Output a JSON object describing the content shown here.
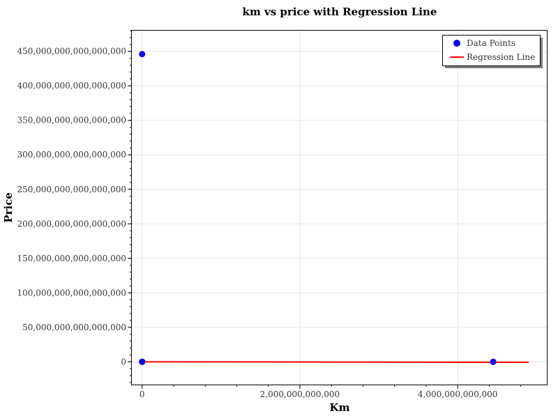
{
  "chart_data": {
    "type": "scatter",
    "title": "km vs price with Regression Line",
    "xlabel": "Km",
    "ylabel": "Price",
    "xlim": [
      -130000000000,
      5130000000000
    ],
    "ylim": [
      -33000000000000000,
      480000000000000000
    ],
    "x_ticks": [
      0,
      2000000000000,
      4000000000000
    ],
    "x_tick_labels": [
      "0",
      "2,000,000,000,000",
      "4,000,000,000,000"
    ],
    "y_ticks": [
      0,
      50000000000000000,
      100000000000000000,
      150000000000000000,
      200000000000000000,
      250000000000000000,
      300000000000000000,
      350000000000000000,
      400000000000000000,
      450000000000000000
    ],
    "y_tick_labels": [
      "0",
      "50,000,000,000,000,000",
      "100,000,000,000,000,000",
      "150,000,000,000,000,000",
      "200,000,000,000,000,000",
      "250,000,000,000,000,000",
      "300,000,000,000,000,000",
      "350,000,000,000,000,000",
      "400,000,000,000,000,000",
      "450,000,000,000,000,000"
    ],
    "grid": true,
    "legend_position": "top-right",
    "series": [
      {
        "name": "Data Points",
        "kind": "scatter",
        "color": "#0000ff",
        "points": [
          [
            0,
            446000000000000000
          ],
          [
            0,
            0
          ],
          [
            1000000000,
            0
          ],
          [
            2000000000,
            0
          ],
          [
            4450000000000,
            0
          ]
        ]
      },
      {
        "name": "Regression Line",
        "kind": "line",
        "color": "#ff0000",
        "points": [
          [
            0,
            0
          ],
          [
            4900000000000,
            -700000000000000
          ]
        ]
      }
    ]
  }
}
